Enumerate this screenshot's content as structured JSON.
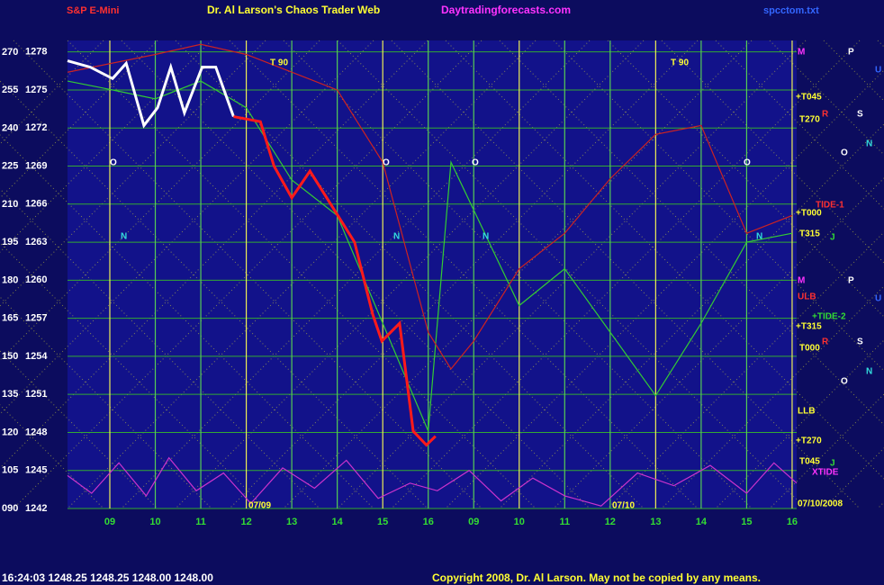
{
  "chart_data": {
    "type": "line",
    "title": "Dr. Al Larson's Chaos Trader Web",
    "instrument": "S&P E-Mini",
    "site": "Daytradingforecasts.com",
    "file": "spcctom.txt",
    "status": "16:24:03  1248.25  1248.25  1248.00  1248.00",
    "copyright": "Copyright 2008, Dr. Al Larson. May not be copied by any means.",
    "xlim": [
      8.07,
      24.1
    ],
    "xticks": [
      {
        "value": 9,
        "label": "09"
      },
      10,
      11,
      12,
      13,
      14,
      15,
      16,
      {
        "value": 17,
        "label": "09"
      },
      {
        "value": 18,
        "label": "10"
      },
      {
        "value": 19,
        "label": "11"
      },
      {
        "value": 20,
        "label": "12"
      },
      {
        "value": 21,
        "label": "13"
      },
      {
        "value": 22,
        "label": "14"
      },
      {
        "value": 23,
        "label": "15"
      },
      {
        "value": 24,
        "label": "16"
      }
    ],
    "ylim": [
      1242,
      1278.9
    ],
    "yticks": [
      1242,
      1245,
      1248,
      1251,
      1254,
      1257,
      1260,
      1263,
      1266,
      1269,
      1272,
      1275,
      1278
    ],
    "y2lim": [
      90,
      274.6
    ],
    "y2ticks": [
      {
        "value": 90,
        "label": "090"
      },
      105,
      120,
      135,
      150,
      165,
      180,
      195,
      210,
      225,
      240,
      255,
      270
    ],
    "grid": true,
    "x": [
      8.07,
      8.57,
      9.06,
      9.36,
      9.75,
      10.05,
      10.34,
      10.64,
      11.03,
      11.33,
      11.72,
      12.31,
      12.61,
      13.0,
      13.4,
      13.89,
      14.38,
      14.78,
      14.98,
      15.37,
      15.67,
      15.96,
      16.16
    ],
    "series": [
      {
        "color": "#ffffff",
        "values": [
          1277.3,
          1276.8,
          1275.9,
          1277.1,
          1272.2,
          1273.6,
          1276.8,
          1273.2,
          1276.8,
          1276.8,
          1272.9,
          null,
          null,
          null,
          null,
          null,
          null,
          null,
          null,
          null,
          null,
          null,
          null
        ]
      },
      {
        "color": "#ff1a1a",
        "values": [
          null,
          null,
          null,
          null,
          null,
          null,
          null,
          null,
          null,
          null,
          1272.9,
          1272.5,
          1269,
          1266.5,
          1268.6,
          1265.8,
          1263,
          1257.3,
          1255.2,
          1256.6,
          1248.1,
          1247,
          1247.7
        ]
      }
    ],
    "lines": [
      {
        "color": "#33cc33",
        "x": [
          8.07,
          9.06,
          10,
          11,
          12,
          13,
          14,
          15,
          16,
          16.5,
          18,
          19,
          20,
          21,
          22,
          23,
          24
        ],
        "values": [
          1275.7,
          1275,
          1274.3,
          1275.7,
          1273.6,
          1267.9,
          1265.1,
          1256.6,
          1248.1,
          1269.3,
          1258,
          1260.9,
          1255.9,
          1250.9,
          1256.6,
          1263,
          1263.7
        ]
      },
      {
        "color": "#cc2222",
        "x": [
          8.07,
          10,
          11,
          12,
          13,
          14,
          15,
          16,
          16.5,
          17,
          18,
          19,
          20,
          21,
          22,
          23,
          24
        ],
        "values": [
          1276.4,
          1277.8,
          1278.6,
          1277.8,
          1276.4,
          1275,
          1269.3,
          1255.9,
          1253,
          1255.2,
          1260.9,
          1263.7,
          1268,
          1271.5,
          1272.2,
          1263.7,
          1265.1
        ]
      },
      {
        "color": "#cc33cc",
        "axis": "y2",
        "x": [
          8.07,
          8.6,
          9.2,
          9.8,
          10.3,
          10.9,
          11.5,
          12.1,
          12.8,
          13.5,
          14.2,
          14.9,
          15.6,
          16.2,
          16.9,
          17.6,
          18.3,
          19,
          19.8,
          20.6,
          21.4,
          22.2,
          23,
          23.6,
          24.1
        ],
        "values": [
          103,
          96,
          108,
          95,
          110,
          97,
          104,
          92,
          106,
          98,
          109,
          94,
          100,
          97,
          105,
          93,
          102,
          95,
          91,
          104,
          99,
          107,
          96,
          108,
          100
        ]
      }
    ],
    "annotations": [
      "T 90",
      "T 90",
      "M",
      "P",
      "U",
      "+T045",
      "T270",
      "R",
      "S",
      "N",
      "O",
      "TIDE-1",
      "+T000",
      "T315",
      "J",
      "M",
      "P",
      "U",
      "ULB",
      "+TIDE-2",
      "+T315",
      "R",
      "T000",
      "S",
      "N",
      "O",
      "LLB",
      "+T270",
      "T045",
      "J",
      "XTIDE",
      "07/10/2008",
      "07/09",
      "07/10",
      "O",
      "O",
      "O",
      "O",
      "N",
      "N",
      "N",
      "N"
    ]
  }
}
